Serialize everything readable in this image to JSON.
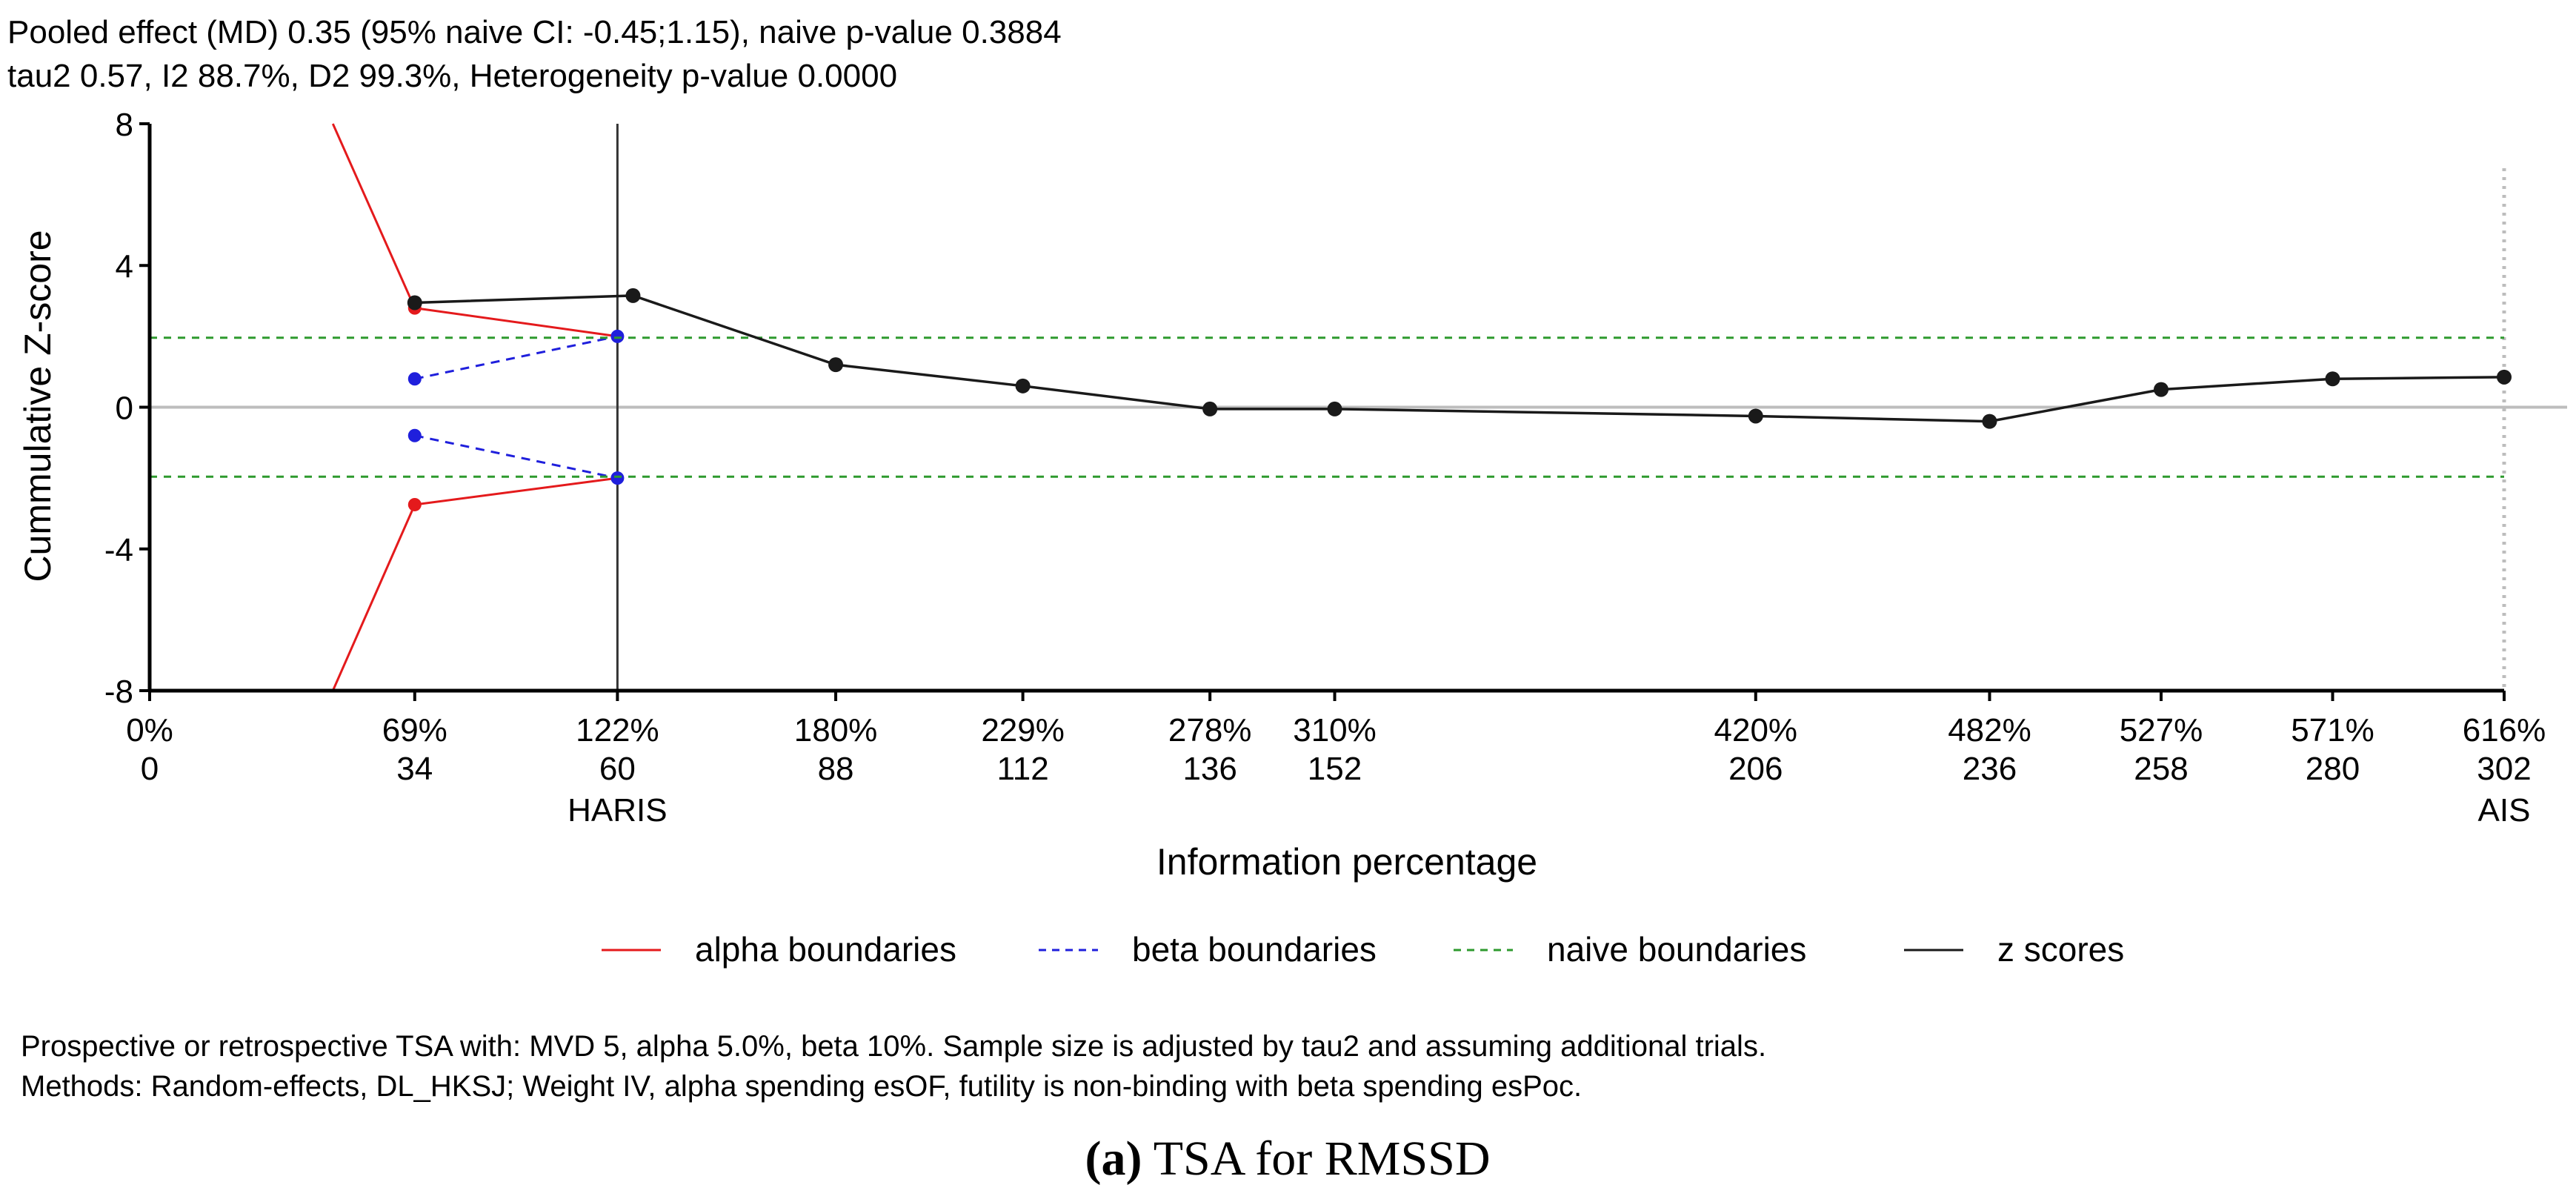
{
  "header": {
    "line1": "Pooled effect (MD) 0.35 (95% naive CI: -0.45;1.15), naive p-value 0.3884",
    "line2": "tau2 0.57, I2 88.7%, D2 99.3%, Heterogeneity p-value 0.0000"
  },
  "footer": {
    "line1": "Prospective or retrospective TSA with: MVD 5, alpha 5.0%, beta 10%. Sample size is adjusted by tau2 and assuming  additional trials.",
    "line2": "Methods: Random-effects, DL_HKSJ; Weight IV, alpha spending esOF, futility is non-binding with beta spending esPoc."
  },
  "caption": {
    "label": "(a)",
    "text": " TSA for RMSSD"
  },
  "colors": {
    "alpha": "#e41a1c",
    "beta": "#1f1fdc",
    "naive": "#2e9a2e",
    "z": "#1a1a1a",
    "axis": "#000000",
    "zero_line": "#bdbdbd",
    "ais_line": "#bdbdbd"
  },
  "chart_data": {
    "type": "line",
    "ylabel": "Cummulative Z-score",
    "xlabel": "Information percentage",
    "xlim": [
      0,
      302
    ],
    "ylim": [
      -8,
      8
    ],
    "yticks": [
      {
        "value": 8,
        "label": "8"
      },
      {
        "value": 4,
        "label": "4"
      },
      {
        "value": 0,
        "label": "0"
      },
      {
        "value": -4,
        "label": "-4"
      },
      {
        "value": -8,
        "label": "-8"
      }
    ],
    "xticks": [
      {
        "x": 0,
        "pct": "0%",
        "n": "0",
        "note": ""
      },
      {
        "x": 34,
        "pct": "69%",
        "n": "34",
        "note": ""
      },
      {
        "x": 60,
        "pct": "122%",
        "n": "60",
        "note": "HARIS"
      },
      {
        "x": 88,
        "pct": "180%",
        "n": "88",
        "note": ""
      },
      {
        "x": 112,
        "pct": "229%",
        "n": "112",
        "note": ""
      },
      {
        "x": 136,
        "pct": "278%",
        "n": "136",
        "note": ""
      },
      {
        "x": 152,
        "pct": "310%",
        "n": "152",
        "note": ""
      },
      {
        "x": 206,
        "pct": "420%",
        "n": "206",
        "note": ""
      },
      {
        "x": 236,
        "pct": "482%",
        "n": "236",
        "note": ""
      },
      {
        "x": 258,
        "pct": "527%",
        "n": "258",
        "note": ""
      },
      {
        "x": 280,
        "pct": "571%",
        "n": "280",
        "note": ""
      },
      {
        "x": 302,
        "pct": "616%",
        "n": "302",
        "note": "AIS"
      }
    ],
    "haris_x": 60,
    "ais_x": 302,
    "series": [
      {
        "name": "alpha boundaries (upper)",
        "key": "alpha",
        "style": "solid",
        "points": [
          [
            23.5,
            8.0
          ],
          [
            34,
            2.8
          ],
          [
            60,
            2.0
          ]
        ],
        "markers": [
          [
            34,
            2.8
          ]
        ]
      },
      {
        "name": "alpha boundaries (lower)",
        "key": "alpha",
        "style": "solid",
        "points": [
          [
            23.5,
            -8.0
          ],
          [
            34,
            -2.75
          ],
          [
            60,
            -2.0
          ]
        ],
        "markers": [
          [
            34,
            -2.75
          ]
        ]
      },
      {
        "name": "beta boundaries (upper)",
        "key": "beta",
        "style": "dashed",
        "points": [
          [
            34,
            0.8
          ],
          [
            60,
            2.0
          ]
        ],
        "markers": [
          [
            34,
            0.8
          ],
          [
            60,
            2.0
          ]
        ]
      },
      {
        "name": "beta boundaries (lower)",
        "key": "beta",
        "style": "dashed",
        "points": [
          [
            34,
            -0.8
          ],
          [
            60,
            -2.0
          ]
        ],
        "markers": [
          [
            34,
            -0.8
          ],
          [
            60,
            -2.0
          ]
        ]
      },
      {
        "name": "naive boundaries (upper)",
        "key": "naive",
        "style": "dashed",
        "points": [
          [
            0,
            1.96
          ],
          [
            302,
            1.96
          ]
        ],
        "markers": []
      },
      {
        "name": "naive boundaries (lower)",
        "key": "naive",
        "style": "dashed",
        "points": [
          [
            0,
            -1.96
          ],
          [
            302,
            -1.96
          ]
        ],
        "markers": []
      },
      {
        "name": "z scores",
        "key": "z",
        "style": "solid",
        "points": [
          [
            34,
            2.95
          ],
          [
            62,
            3.15
          ],
          [
            88,
            1.2
          ],
          [
            112,
            0.6
          ],
          [
            136,
            -0.05
          ],
          [
            152,
            -0.05
          ],
          [
            206,
            -0.25
          ],
          [
            236,
            -0.4
          ],
          [
            258,
            0.5
          ],
          [
            280,
            0.8
          ],
          [
            302,
            0.85
          ]
        ],
        "markers": [
          [
            34,
            2.95
          ],
          [
            62,
            3.15
          ],
          [
            88,
            1.2
          ],
          [
            112,
            0.6
          ],
          [
            136,
            -0.05
          ],
          [
            152,
            -0.05
          ],
          [
            206,
            -0.25
          ],
          [
            236,
            -0.4
          ],
          [
            258,
            0.5
          ],
          [
            280,
            0.8
          ],
          [
            302,
            0.85
          ]
        ]
      }
    ],
    "legend": [
      {
        "key": "alpha",
        "label": "alpha boundaries",
        "style": "solid"
      },
      {
        "key": "beta",
        "label": "beta boundaries",
        "style": "dashed"
      },
      {
        "key": "naive",
        "label": "naive boundaries",
        "style": "dashed"
      },
      {
        "key": "z",
        "label": "z scores",
        "style": "solid"
      }
    ]
  }
}
